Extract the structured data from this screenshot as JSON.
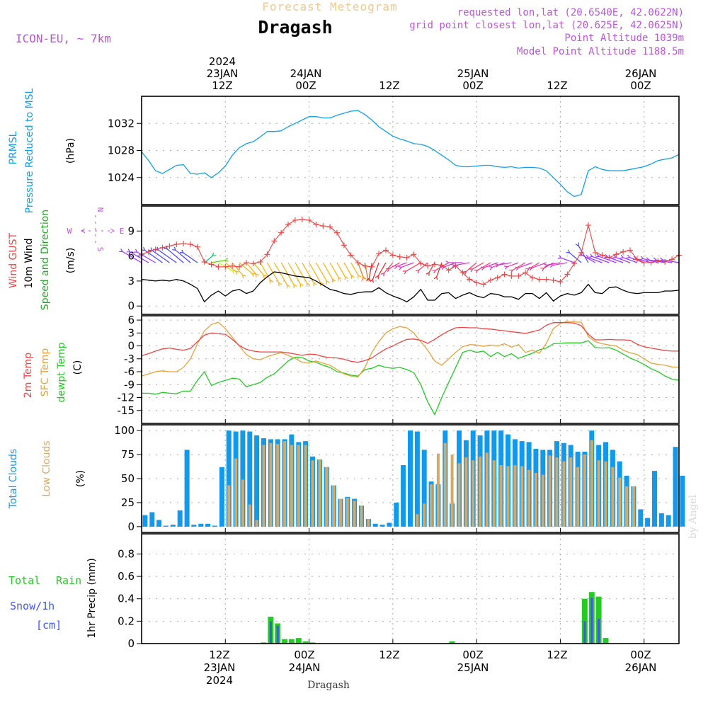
{
  "header": {
    "super_title": "Forecast Meteogram",
    "location": "Dragash",
    "model": "ICON-EU, ~ 7km",
    "requested": "requested lon,lat (20.6540E, 42.0622N)",
    "grid_point": "grid point closest lon,lat (20.625E, 42.0625N)",
    "point_altitude": "Point Altitude 1039m",
    "model_altitude": "Model Point Altitude 1188.5m",
    "footer_location": "Dragash",
    "watermark": "by Angel"
  },
  "colors": {
    "pressure": "#11a0ea",
    "gust": "#ee4444",
    "wind": "#000000",
    "temp2m": "#ee4444",
    "sfc": "#e8a23a",
    "dew": "#22cc22",
    "total_cloud": "#1199ee",
    "low_cloud": "#d4aa66",
    "rain": "#22cc22",
    "snow": "#4455ee",
    "header_purple": "#bb55dd",
    "header_orange": "#f0c890"
  },
  "time_axis": {
    "top": [
      {
        "t": 12,
        "lines": [
          "2024",
          "23JAN",
          "12Z"
        ]
      },
      {
        "t": 24,
        "lines": [
          "24JAN",
          "00Z"
        ]
      },
      {
        "t": 36,
        "lines": [
          "12Z"
        ]
      },
      {
        "t": 48,
        "lines": [
          "25JAN",
          "00Z"
        ]
      },
      {
        "t": 60,
        "lines": [
          "12Z"
        ]
      },
      {
        "t": 72,
        "lines": [
          "26JAN",
          "00Z"
        ]
      }
    ],
    "bottom": [
      {
        "t": 12,
        "lines": [
          "12Z",
          "23JAN",
          "2024"
        ]
      },
      {
        "t": 24,
        "lines": [
          "00Z",
          "24JAN"
        ]
      },
      {
        "t": 36,
        "lines": [
          "12Z"
        ]
      },
      {
        "t": 48,
        "lines": [
          "00Z",
          "25JAN"
        ]
      },
      {
        "t": 60,
        "lines": [
          "12Z"
        ]
      },
      {
        "t": 72,
        "lines": [
          "00Z",
          "26JAN"
        ]
      }
    ]
  },
  "chart_data": [
    {
      "type": "line",
      "panel": "pressure",
      "title": "PRMSL Pressure Reduced to MSL",
      "unit_label": "(hPa)",
      "x_start_hour": 0,
      "x_step_hours": 1,
      "xlim": [
        0,
        77
      ],
      "ylim": [
        1020,
        1036
      ],
      "yticks": [
        1024,
        1028,
        1032
      ],
      "series": [
        {
          "name": "PRMSL",
          "values": [
            1027.8,
            1026.5,
            1025.0,
            1024.6,
            1025.2,
            1025.8,
            1025.9,
            1024.6,
            1024.5,
            1024.7,
            1024.0,
            1024.7,
            1025.7,
            1027.3,
            1028.4,
            1029.0,
            1029.3,
            1030.0,
            1030.8,
            1030.8,
            1030.9,
            1031.5,
            1032.0,
            1032.5,
            1033.0,
            1033.0,
            1032.8,
            1032.8,
            1033.2,
            1033.5,
            1033.8,
            1033.9,
            1033.3,
            1032.5,
            1031.5,
            1030.8,
            1030.1,
            1029.7,
            1029.4,
            1029.0,
            1028.9,
            1028.6,
            1028.0,
            1027.3,
            1026.6,
            1025.8,
            1025.6,
            1025.6,
            1025.7,
            1025.8,
            1025.8,
            1025.6,
            1025.5,
            1025.6,
            1025.4,
            1025.5,
            1025.5,
            1025.4,
            1025.0,
            1024.0,
            1023.0,
            1021.9,
            1021.2,
            1021.5,
            1025.0,
            1025.6,
            1025.2,
            1025.0,
            1025.0,
            1025.0,
            1025.2,
            1025.4,
            1025.6,
            1026.0,
            1026.5,
            1026.7,
            1026.9,
            1027.4
          ]
        }
      ]
    },
    {
      "type": "line",
      "panel": "wind",
      "title": "Wind GUST / 10m Wind Speed and Direction",
      "unit_label": "(m/s)",
      "compass": {
        "n": "N",
        "s": "S",
        "w": "W",
        "e": "E"
      },
      "x_start_hour": 0,
      "x_step_hours": 1,
      "xlim": [
        0,
        77
      ],
      "ylim": [
        -1,
        12
      ],
      "yticks": [
        0,
        3,
        6,
        9
      ],
      "series": [
        {
          "name": "Wind GUST",
          "values": [
            6.2,
            6.5,
            6.8,
            7.0,
            7.2,
            7.4,
            7.5,
            7.4,
            7.1,
            5.3,
            5.0,
            4.7,
            4.7,
            4.8,
            4.7,
            5.2,
            5.1,
            5.3,
            6.2,
            7.8,
            8.8,
            9.8,
            10.3,
            10.4,
            10.3,
            9.8,
            9.6,
            9.5,
            8.8,
            7.3,
            6.1,
            5.2,
            4.8,
            4.7,
            6.3,
            6.7,
            6.1,
            5.9,
            5.8,
            6.2,
            5.1,
            4.8,
            5.0,
            4.9,
            4.3,
            4.8,
            4.0,
            3.2,
            2.8,
            2.6,
            3.1,
            3.4,
            3.8,
            3.6,
            3.6,
            4.0,
            3.4,
            3.2,
            3.2,
            3.1,
            2.9,
            3.8,
            5.1,
            6.4,
            9.7,
            6.4,
            6.1,
            5.8,
            6.2,
            6.5,
            6.7,
            5.6,
            5.2,
            5.2,
            5.4,
            5.3,
            5.6,
            6.1
          ]
        },
        {
          "name": "10m Wind",
          "values": [
            3.2,
            3.1,
            3.0,
            3.1,
            3.0,
            3.2,
            3.0,
            2.6,
            2.1,
            0.5,
            1.3,
            1.8,
            1.2,
            1.8,
            2.0,
            1.5,
            1.8,
            2.8,
            3.5,
            4.1,
            4.0,
            3.8,
            3.6,
            3.5,
            3.4,
            3.0,
            2.5,
            2.0,
            1.8,
            1.5,
            1.4,
            1.6,
            1.7,
            1.7,
            2.2,
            1.6,
            1.2,
            0.9,
            0.5,
            1.1,
            2.0,
            0.7,
            0.7,
            1.5,
            1.6,
            0.9,
            1.3,
            1.6,
            1.2,
            1.0,
            1.5,
            1.4,
            1.1,
            1.1,
            0.8,
            1.5,
            1.5,
            0.9,
            1.6,
            0.6,
            1.2,
            1.5,
            1.3,
            1.6,
            2.6,
            1.6,
            1.5,
            2.2,
            2.3,
            1.9,
            1.6,
            1.5,
            1.6,
            1.6,
            1.6,
            1.8,
            1.8,
            1.9
          ]
        }
      ],
      "arrows": {
        "x_start_hour": 0,
        "x_step_hours": 1,
        "y_level": 5.2,
        "direction_deg": [
          240,
          240,
          240,
          235,
          235,
          235,
          230,
          230,
          235,
          130,
          100,
          60,
          50,
          40,
          50,
          40,
          40,
          30,
          30,
          30,
          30,
          30,
          30,
          30,
          30,
          30,
          30,
          30,
          30,
          30,
          30,
          20,
          10,
          350,
          340,
          330,
          320,
          300,
          290,
          290,
          300,
          310,
          330,
          340,
          300,
          290,
          270,
          280,
          310,
          300,
          300,
          290,
          290,
          280,
          290,
          300,
          290,
          300,
          290,
          300,
          280,
          280,
          250,
          230,
          210,
          240,
          250,
          250,
          250,
          250,
          250,
          250,
          250,
          255,
          255,
          260,
          260,
          260
        ]
      }
    },
    {
      "type": "line",
      "panel": "temperature",
      "title": "2m Temp / SFC Temp / dewpt Temp",
      "unit_label": "(C)",
      "x_start_hour": 0,
      "x_step_hours": 1,
      "xlim": [
        0,
        77
      ],
      "ylim": [
        -18,
        7
      ],
      "yticks": [
        -15,
        -12,
        -9,
        -6,
        -3,
        0,
        3,
        6
      ],
      "series": [
        {
          "name": "2m Temp",
          "values": [
            -2.3,
            -1.8,
            -1.2,
            -0.7,
            -0.5,
            -0.8,
            -1.0,
            -0.6,
            1.0,
            2.5,
            3.0,
            2.8,
            2.7,
            1.5,
            0.1,
            -0.8,
            -1.2,
            -1.4,
            -1.4,
            -1.4,
            -1.4,
            -1.6,
            -1.9,
            -2.2,
            -1.9,
            -2.0,
            -2.5,
            -2.7,
            -2.8,
            -3.1,
            -3.6,
            -3.8,
            -3.4,
            -2.8,
            -1.7,
            -0.7,
            0.0,
            0.8,
            1.5,
            1.6,
            1.3,
            0.6,
            1.5,
            2.6,
            3.5,
            4.2,
            4.3,
            4.2,
            4.2,
            4.0,
            3.9,
            3.7,
            3.5,
            3.3,
            3.1,
            2.9,
            3.3,
            3.7,
            4.8,
            5.4,
            5.4,
            5.4,
            5.3,
            4.7,
            2.7,
            1.4,
            1.4,
            1.5,
            1.4,
            1.4,
            1.3,
            0.4,
            -0.2,
            -0.5,
            -0.8,
            -1.1,
            -1.2,
            -1.2
          ]
        },
        {
          "name": "SFC Temp",
          "values": [
            -7.0,
            -6.5,
            -6.0,
            -5.8,
            -6.0,
            -6.0,
            -5.0,
            -3.0,
            0.5,
            3.5,
            5.0,
            5.5,
            4.0,
            2.0,
            0.0,
            -2.0,
            -3.0,
            -3.2,
            -2.5,
            -2.0,
            -1.6,
            -2.2,
            -2.9,
            -3.8,
            -4.0,
            -3.5,
            -4.0,
            -4.5,
            -5.5,
            -6.5,
            -7.0,
            -7.2,
            -5.0,
            -1.5,
            1.0,
            3.0,
            4.0,
            4.5,
            4.2,
            3.0,
            1.0,
            -1.0,
            -3.5,
            -4.5,
            -3.0,
            -1.5,
            -0.2,
            0.3,
            0.2,
            -0.1,
            0.2,
            0.0,
            0.5,
            -0.3,
            0.3,
            -1.5,
            -1.0,
            -1.7,
            0.6,
            4.0,
            5.2,
            5.7,
            5.6,
            5.5,
            2.2,
            1.0,
            0.5,
            0.2,
            0.0,
            -1.0,
            -1.6,
            -2.0,
            -3.0,
            -4.0,
            -4.3,
            -4.5,
            -4.9,
            -4.9
          ]
        },
        {
          "name": "dewpt Temp",
          "values": [
            -11.0,
            -11.0,
            -11.2,
            -10.8,
            -11.0,
            -11.1,
            -10.5,
            -10.5,
            -8.0,
            -6.0,
            -9.2,
            -8.5,
            -8.0,
            -7.5,
            -7.7,
            -9.5,
            -9.0,
            -8.5,
            -7.3,
            -6.5,
            -5.0,
            -3.5,
            -2.6,
            -2.7,
            -3.5,
            -3.8,
            -4.5,
            -5.0,
            -6.0,
            -6.3,
            -6.8,
            -7.0,
            -5.5,
            -5.2,
            -4.5,
            -5.0,
            -5.2,
            -5.0,
            -5.5,
            -6.2,
            -9.0,
            -13.0,
            -16.0,
            -12.0,
            -8.5,
            -5.0,
            -1.5,
            -1.0,
            -1.5,
            -1.2,
            -2.5,
            -1.5,
            -2.5,
            -1.8,
            -2.9,
            -2.3,
            -1.7,
            -0.9,
            -0.5,
            0.5,
            0.6,
            0.7,
            0.7,
            0.7,
            1.2,
            -0.4,
            -0.5,
            -0.4,
            -1.0,
            -1.9,
            -2.8,
            -3.5,
            -4.3,
            -5.3,
            -6.0,
            -7.0,
            -7.7,
            -8.0
          ]
        }
      ]
    },
    {
      "type": "bar",
      "panel": "clouds",
      "title": "Total Clouds / Low Clouds",
      "unit_label": "(%)",
      "x_start_hour": 0,
      "x_step_hours": 1,
      "xlim": [
        0,
        77
      ],
      "ylim": [
        -6,
        106
      ],
      "yticks": [
        0,
        25,
        50,
        75,
        100
      ],
      "series": [
        {
          "name": "Total Clouds",
          "values": [
            12,
            15,
            7,
            1,
            2,
            17,
            80,
            2,
            3,
            3,
            1,
            62,
            100,
            99,
            100,
            99,
            95,
            92,
            91,
            91,
            91,
            96,
            88,
            89,
            73,
            70,
            62,
            43,
            29,
            31,
            29,
            22,
            8,
            3,
            2,
            4,
            25,
            64,
            100,
            99,
            80,
            47,
            44,
            100,
            24,
            100,
            90,
            100,
            95,
            100,
            100,
            100,
            96,
            91,
            89,
            88,
            81,
            80,
            80,
            89,
            87,
            85,
            78,
            78,
            100,
            85,
            88,
            80,
            68,
            53,
            42,
            18,
            9,
            58,
            14,
            12,
            83,
            53
          ]
        },
        {
          "name": "Low Clouds",
          "values": [
            0,
            0,
            0,
            0,
            0,
            0,
            0,
            0,
            0,
            0,
            0,
            0,
            43,
            71,
            49,
            23,
            7,
            85,
            87,
            86,
            89,
            85,
            85,
            85,
            69,
            70,
            62,
            43,
            29,
            30,
            27,
            22,
            8,
            0,
            0,
            0,
            0,
            0,
            0,
            13,
            24,
            44,
            76,
            87,
            75,
            66,
            72,
            69,
            73,
            77,
            69,
            64,
            63,
            64,
            63,
            59,
            56,
            54,
            74,
            72,
            68,
            72,
            62,
            75,
            90,
            69,
            68,
            62,
            51,
            42,
            42,
            0,
            0,
            0,
            0,
            0,
            0,
            0
          ]
        }
      ]
    },
    {
      "type": "bar",
      "panel": "precipitation",
      "title": "1hr Precip (mm)",
      "legend": [
        "Total",
        "Rain",
        "Snow/1h",
        "[cm]"
      ],
      "x_start_hour": 0,
      "x_step_hours": 1,
      "xlim": [
        0,
        77
      ],
      "ylim": [
        0,
        0.98
      ],
      "yticks": [
        0,
        0.2,
        0.4,
        0.6,
        0.8
      ],
      "series": [
        {
          "name": "Total Rain",
          "values": [
            0,
            0,
            0,
            0,
            0,
            0,
            0,
            0,
            0,
            0,
            0,
            0,
            0,
            0,
            0,
            0,
            0,
            0.01,
            0.24,
            0.18,
            0.04,
            0.04,
            0.05,
            0.02,
            0.01,
            0,
            0,
            0,
            0,
            0,
            0,
            0,
            0,
            0,
            0,
            0,
            0,
            0,
            0,
            0,
            0,
            0,
            0,
            0,
            0.02,
            0,
            0,
            0,
            0,
            0,
            0,
            0,
            0,
            0,
            0,
            0,
            0,
            0,
            0,
            0,
            0,
            0,
            0,
            0.4,
            0.46,
            0.42,
            0.05,
            0,
            0,
            0,
            0,
            0,
            0,
            0,
            0,
            0,
            0,
            0
          ]
        },
        {
          "name": "Snow/1h",
          "values": [
            0,
            0,
            0,
            0,
            0,
            0,
            0,
            0,
            0,
            0,
            0,
            0,
            0,
            0,
            0,
            0,
            0,
            0,
            0.2,
            0.16,
            0,
            0,
            0,
            0,
            0,
            0,
            0,
            0,
            0,
            0,
            0,
            0,
            0,
            0,
            0,
            0,
            0,
            0,
            0,
            0,
            0,
            0,
            0,
            0,
            0,
            0,
            0,
            0,
            0,
            0,
            0,
            0,
            0,
            0,
            0,
            0,
            0,
            0,
            0,
            0,
            0,
            0,
            0,
            0.2,
            0.41,
            0.22,
            0,
            0,
            0,
            0,
            0,
            0,
            0,
            0,
            0,
            0,
            0
          ]
        }
      ]
    }
  ]
}
